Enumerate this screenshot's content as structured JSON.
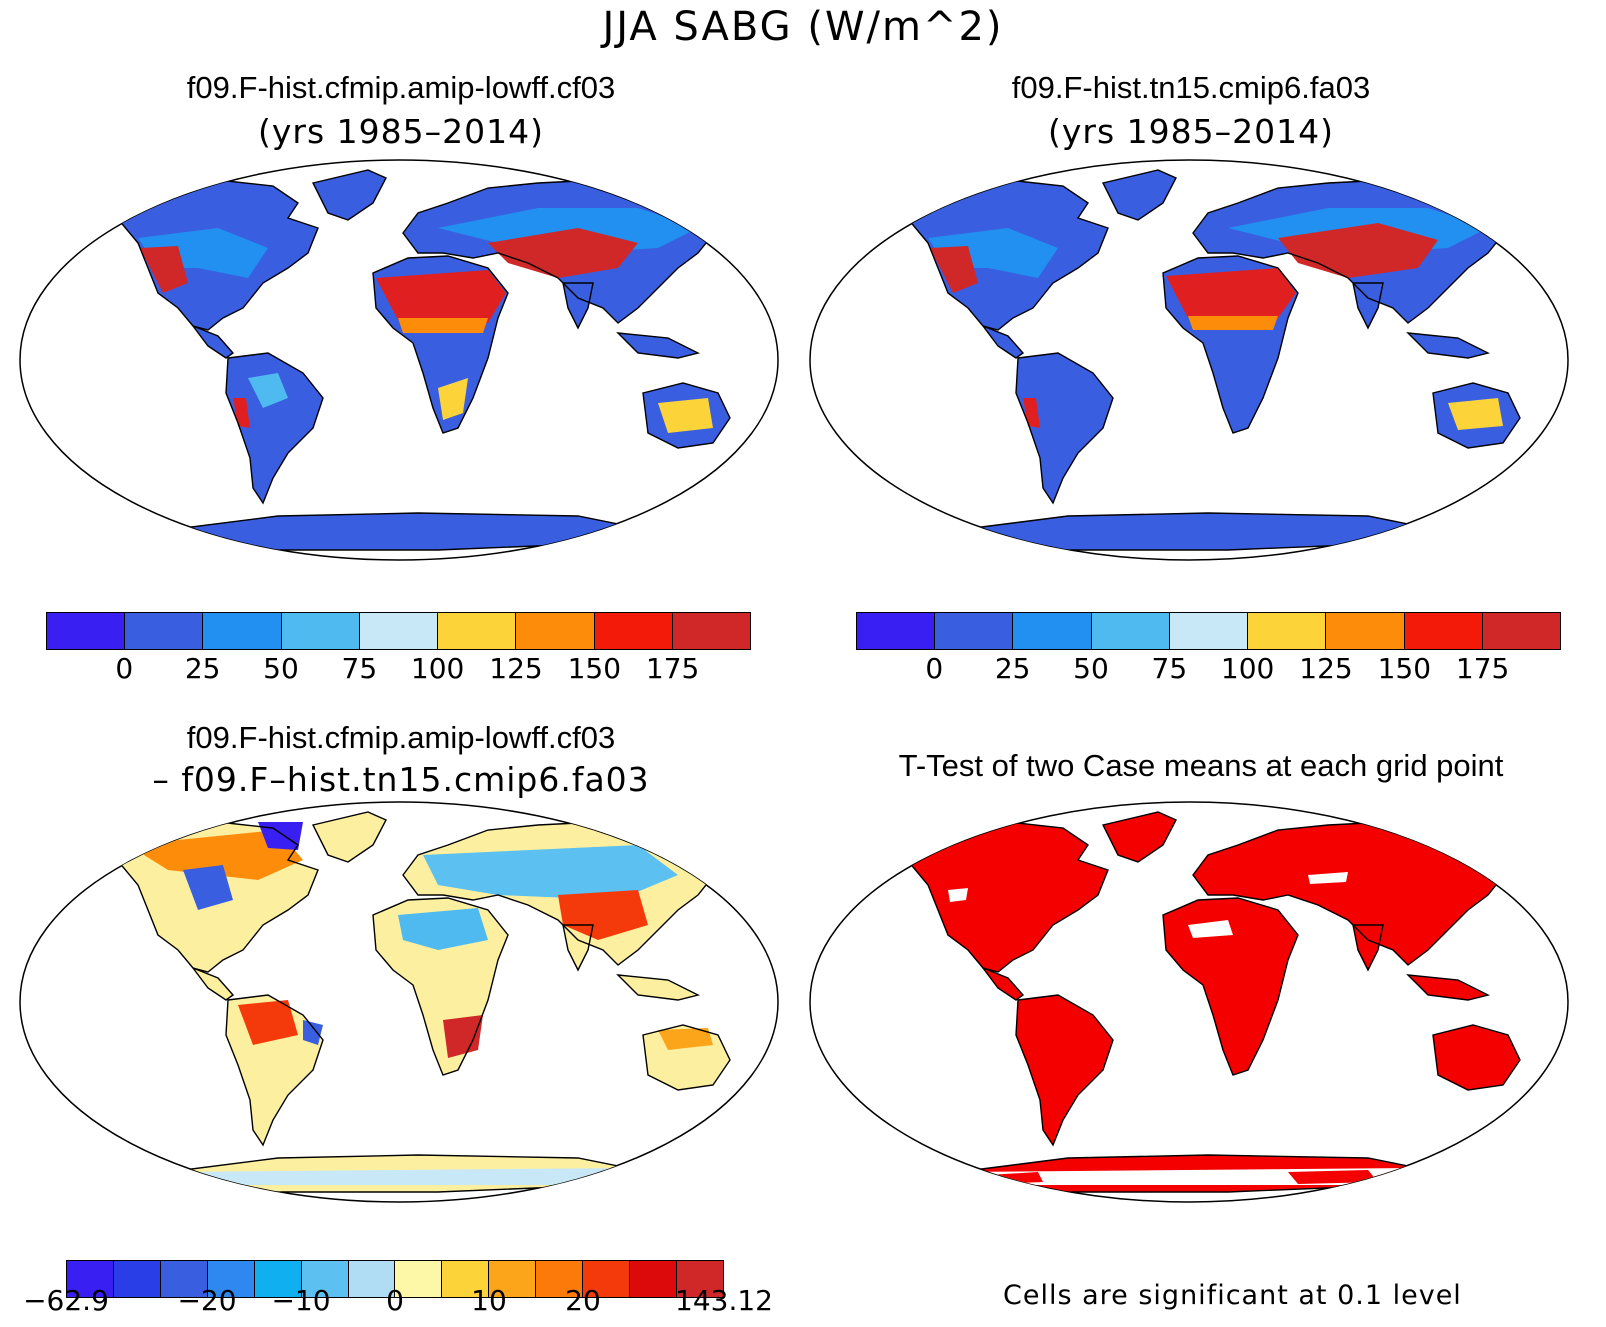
{
  "main_title": "JJA SABG (W/m^2)",
  "panels": [
    {
      "title": "f09.F-hist.cfmip.amip-lowff.cf03",
      "subtitle": "(yrs 1985–2014)"
    },
    {
      "title": "f09.F-hist.tn15.cmip6.fa03",
      "subtitle": "(yrs 1985–2014)"
    },
    {
      "title": "f09.F-hist.cfmip.amip-lowff.cf03",
      "subtitle": "– f09.F–hist.tn15.cmip6.fa03"
    },
    {
      "title": "T-Test of two Case means at each grid point",
      "subtitle": ""
    }
  ],
  "colorbar_mean": {
    "colors": [
      "#3a1ff2",
      "#3a5ee0",
      "#2190f0",
      "#4fbaf0",
      "#c8e8f8",
      "#fcd43a",
      "#fc8c0a",
      "#f41a0a",
      "#d02828"
    ],
    "ticks": [
      "0",
      "25",
      "50",
      "75",
      "100",
      "125",
      "150",
      "175"
    ]
  },
  "colorbar_diff": {
    "colors": [
      "#3a1ff2",
      "#2a3ee8",
      "#3a5ee0",
      "#2e88f0",
      "#10b0f0",
      "#5cc0f0",
      "#b0dcf4",
      "#fcf8a8",
      "#fcd43a",
      "#fca41a",
      "#fc7a0a",
      "#f43a0a",
      "#dc0a0a",
      "#d02828"
    ],
    "ticks": [
      "-62.9",
      "-20",
      "-10",
      "0",
      "10",
      "20",
      "143.12"
    ]
  },
  "ttest_note": "Cells are significant at 0.1 level",
  "colors": {
    "land_fill_mean": "#3a5ee0",
    "hot_fill": "#e02020",
    "significance": "#f40000",
    "diff_warm": "#fcf0a0"
  }
}
